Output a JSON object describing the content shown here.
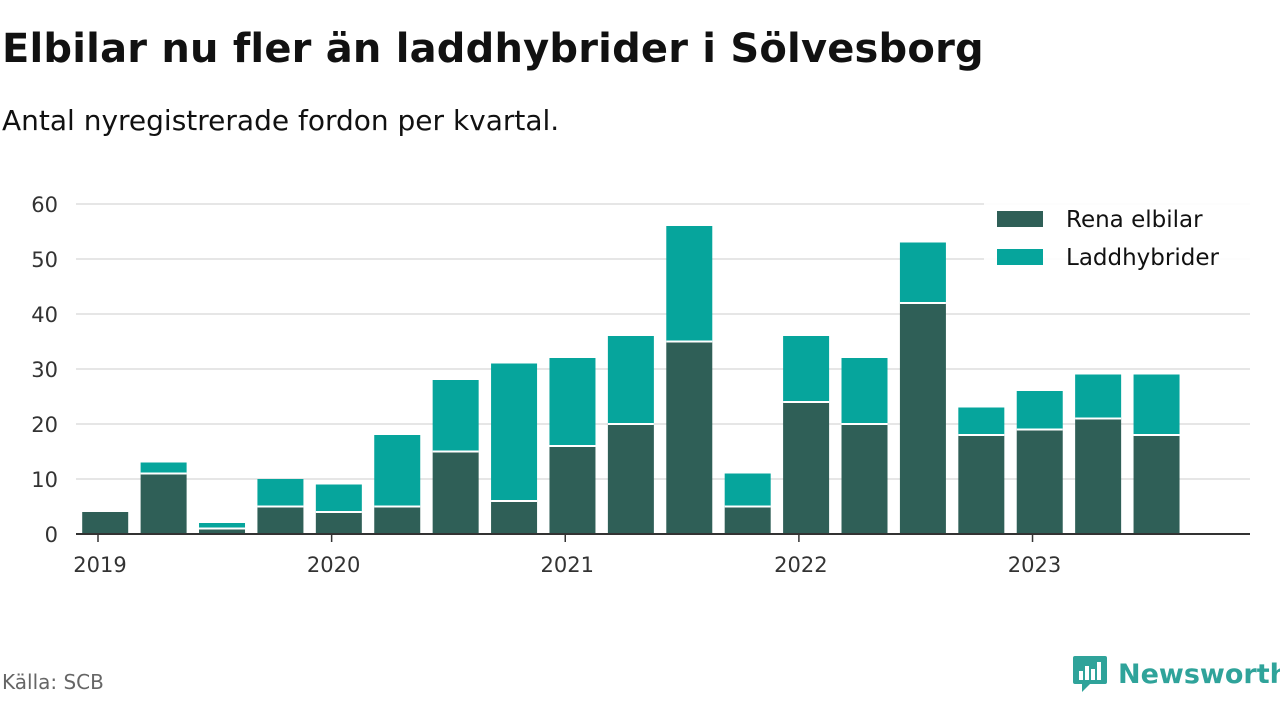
{
  "title": "Elbilar nu fler än laddhybrider i Sölvesborg",
  "subtitle": "Antal nyregistrerade fordon per kvartal.",
  "source": "Källa: SCB",
  "brand": {
    "name": "Newsworthy",
    "icon": "newsworthy-logo-icon"
  },
  "colors": {
    "elbilar": "#2f5f57",
    "laddhybrider": "#06a59c",
    "grid": "#dddddd",
    "axis": "#333333"
  },
  "chart_data": {
    "type": "bar",
    "stacked": true,
    "categories": [
      "2019 Q1",
      "2019 Q2",
      "2019 Q3",
      "2019 Q4",
      "2020 Q1",
      "2020 Q2",
      "2020 Q3",
      "2020 Q4",
      "2021 Q1",
      "2021 Q2",
      "2021 Q3",
      "2021 Q4",
      "2022 Q1",
      "2022 Q2",
      "2022 Q3",
      "2022 Q4",
      "2023 Q1",
      "2023 Q2",
      "2023 Q3",
      "2023 Q4"
    ],
    "x_tick_labels": [
      "2019",
      "2020",
      "2021",
      "2022",
      "2023"
    ],
    "series": [
      {
        "name": "Rena elbilar",
        "values": [
          4,
          11,
          1,
          5,
          4,
          5,
          15,
          6,
          16,
          20,
          35,
          5,
          24,
          20,
          42,
          18,
          19,
          21,
          18,
          null
        ]
      },
      {
        "name": "Laddhybrider",
        "values": [
          0,
          2,
          1,
          5,
          5,
          13,
          13,
          25,
          16,
          16,
          21,
          6,
          12,
          12,
          11,
          5,
          7,
          8,
          11,
          null
        ]
      }
    ],
    "y_ticks": [
      0,
      10,
      20,
      30,
      40,
      50,
      60
    ],
    "ylim": [
      0,
      60
    ],
    "grid": true,
    "legend_position": "top-right",
    "xlabel": "",
    "ylabel": ""
  }
}
